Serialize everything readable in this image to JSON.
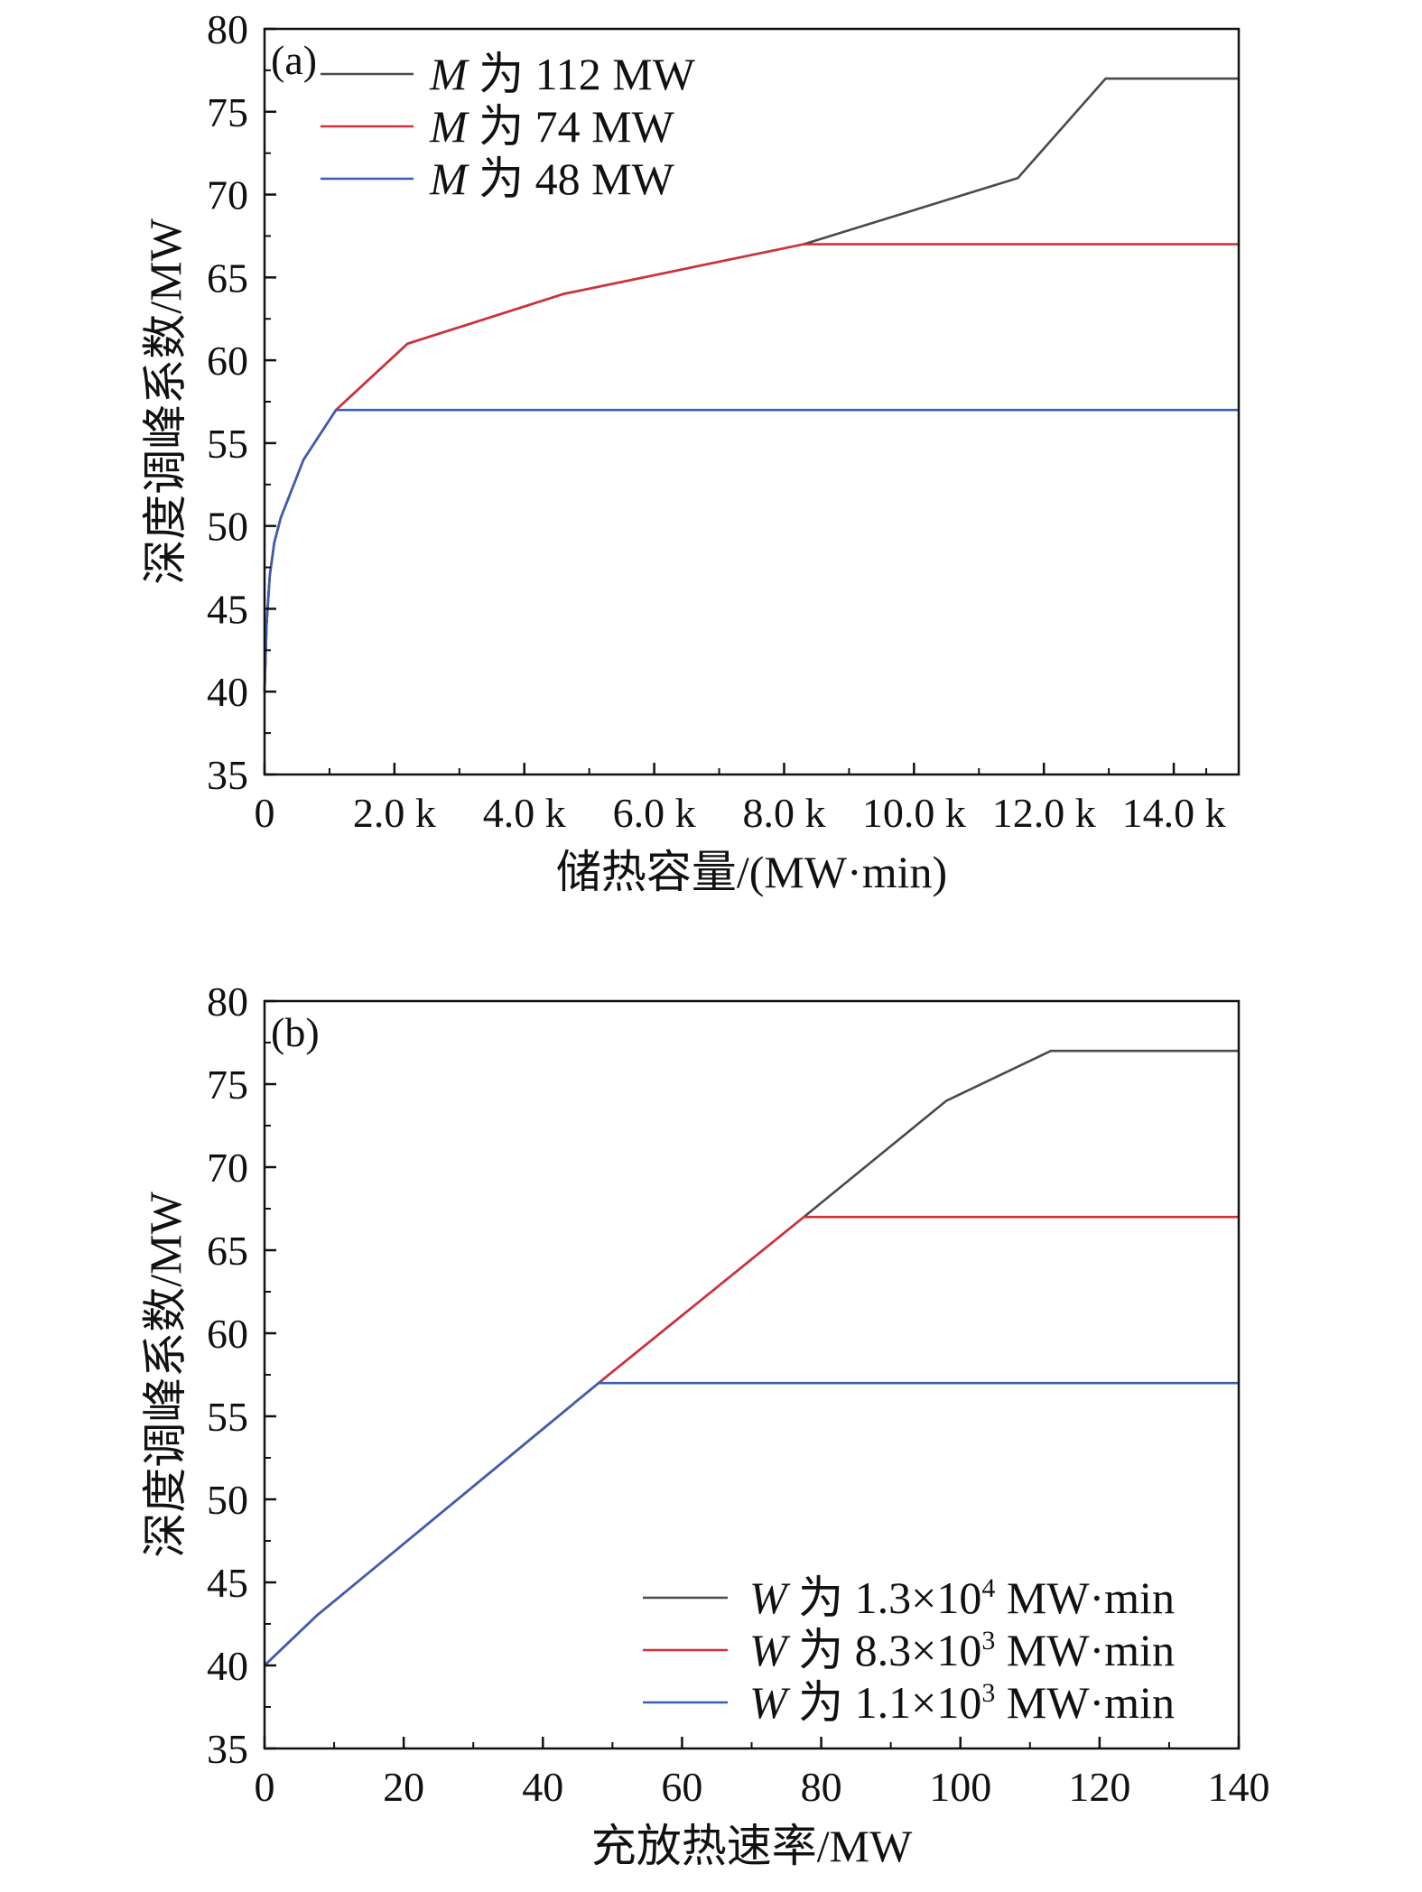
{
  "chart_data": [
    {
      "type": "line",
      "panel_label": "(a)",
      "xlabel": "储热容量/(MW·min)",
      "ylabel": "深度调峰系数/MW",
      "xlim": [
        0,
        15000
      ],
      "ylim": [
        35,
        80
      ],
      "xticks": [
        0,
        2000,
        4000,
        6000,
        8000,
        10000,
        12000,
        14000
      ],
      "xtick_labels": [
        "0",
        "2.0 k",
        "4.0 k",
        "6.0 k",
        "8.0 k",
        "10.0 k",
        "12.0 k",
        "14.0 k"
      ],
      "yticks": [
        35,
        40,
        45,
        50,
        55,
        60,
        65,
        70,
        75,
        80
      ],
      "ytick_labels": [
        "35",
        "40",
        "45",
        "50",
        "55",
        "60",
        "65",
        "70",
        "75",
        "80"
      ],
      "legend_position": "top-left",
      "series": [
        {
          "var": "M",
          "rest": " 为 112 MW",
          "color": "#4a4a4a",
          "x": [
            0,
            30,
            80,
            150,
            250,
            400,
            600,
            1100,
            2200,
            4600,
            8300,
            11600,
            12950,
            15000
          ],
          "y": [
            40,
            44,
            47,
            49,
            50.5,
            52,
            54,
            57,
            61,
            64,
            67,
            71,
            77,
            77
          ]
        },
        {
          "var": "M",
          "rest": " 为 74 MW",
          "color": "#d2303a",
          "x": [
            0,
            30,
            80,
            150,
            250,
            400,
            600,
            1100,
            2200,
            4600,
            8300,
            15000
          ],
          "y": [
            40,
            44,
            47,
            49,
            50.5,
            52,
            54,
            57,
            61,
            64,
            67,
            67
          ]
        },
        {
          "var": "M",
          "rest": " 为 48 MW",
          "color": "#3a5fb0",
          "x": [
            0,
            30,
            80,
            150,
            250,
            400,
            600,
            1100,
            15000
          ],
          "y": [
            40,
            44,
            47,
            49,
            50.5,
            52,
            54,
            57,
            57
          ]
        }
      ]
    },
    {
      "type": "line",
      "panel_label": "(b)",
      "xlabel": "充放热速率/MW",
      "ylabel": "深度调峰系数/MW",
      "xlim": [
        0,
        140
      ],
      "ylim": [
        35,
        80
      ],
      "xticks": [
        0,
        20,
        40,
        60,
        80,
        100,
        120,
        140
      ],
      "xtick_labels": [
        "0",
        "20",
        "40",
        "60",
        "80",
        "100",
        "120",
        "140"
      ],
      "yticks": [
        35,
        40,
        45,
        50,
        55,
        60,
        65,
        70,
        75,
        80
      ],
      "ytick_labels": [
        "35",
        "40",
        "45",
        "50",
        "55",
        "60",
        "65",
        "70",
        "75",
        "80"
      ],
      "legend_position": "bottom-right",
      "series": [
        {
          "var": "W",
          "rest": " 为 1.3×10",
          "sup": "4",
          "unit": " MW·min",
          "color": "#4a4a4a",
          "x": [
            0,
            7.5,
            48,
            77.5,
            98,
            113,
            140
          ],
          "y": [
            40,
            43,
            57,
            67,
            74,
            77,
            77
          ]
        },
        {
          "var": "W",
          "rest": " 为 8.3×10",
          "sup": "3",
          "unit": " MW·min",
          "color": "#d2303a",
          "x": [
            0,
            7.5,
            48,
            77.5,
            140
          ],
          "y": [
            40,
            43,
            57,
            67,
            67
          ]
        },
        {
          "var": "W",
          "rest": " 为 1.1×10",
          "sup": "3",
          "unit": " MW·min",
          "color": "#3a5fb0",
          "x": [
            0,
            7.5,
            48,
            140
          ],
          "y": [
            40,
            43,
            57,
            57
          ]
        }
      ]
    }
  ]
}
